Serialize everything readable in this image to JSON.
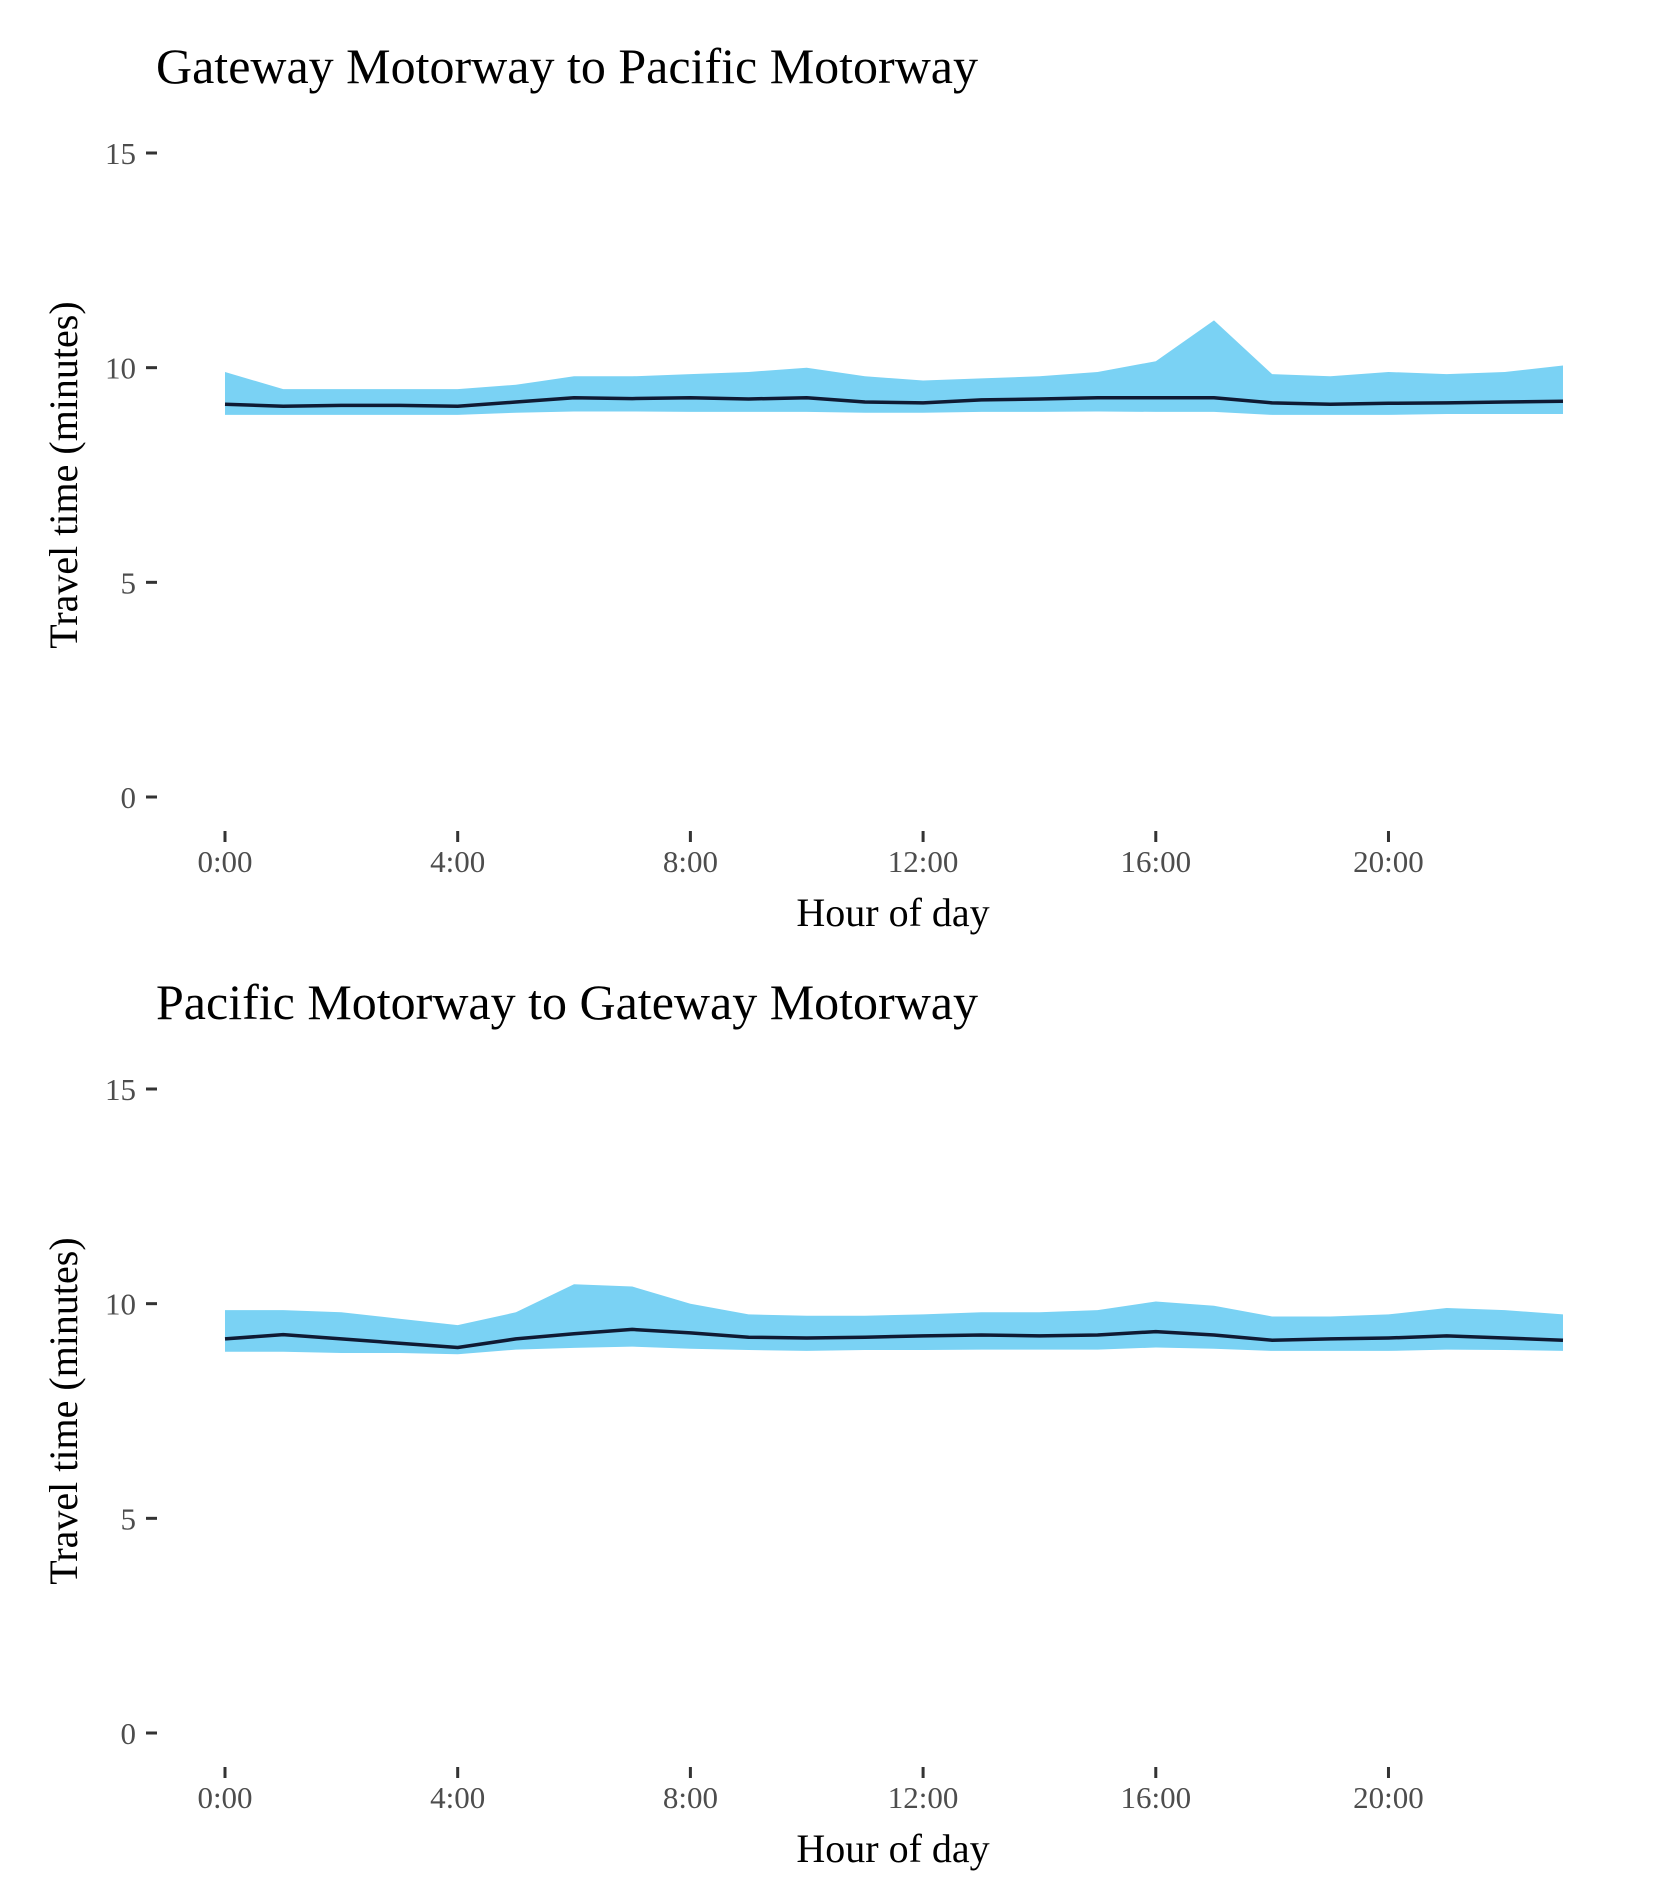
{
  "chart_data": [
    {
      "type": "area",
      "title": "Gateway Motorway to Pacific Motorway",
      "xlabel": "Hour of day",
      "ylabel": "Travel time (minutes)",
      "ylim": [
        0,
        15
      ],
      "yticks": [
        0,
        5,
        10,
        15
      ],
      "xticks": [
        {
          "value": 0,
          "label": "0:00"
        },
        {
          "value": 4,
          "label": "4:00"
        },
        {
          "value": 8,
          "label": "8:00"
        },
        {
          "value": 12,
          "label": "12:00"
        },
        {
          "value": 16,
          "label": "16:00"
        },
        {
          "value": 20,
          "label": "20:00"
        }
      ],
      "xlim": [
        0,
        23
      ],
      "grid": false,
      "legend": "none",
      "band_color": "#7ad2f4",
      "line_color": "#0f1a33",
      "x": [
        0,
        1,
        2,
        3,
        4,
        5,
        6,
        7,
        8,
        9,
        10,
        11,
        12,
        13,
        14,
        15,
        16,
        17,
        18,
        19,
        20,
        21,
        22,
        23
      ],
      "series": [
        {
          "role": "band-upper",
          "values": [
            9.9,
            9.5,
            9.5,
            9.5,
            9.5,
            9.6,
            9.8,
            9.8,
            9.85,
            9.9,
            10.0,
            9.8,
            9.7,
            9.75,
            9.8,
            9.9,
            10.15,
            11.1,
            9.85,
            9.8,
            9.9,
            9.85,
            9.9,
            10.05
          ]
        },
        {
          "role": "line",
          "values": [
            9.15,
            9.1,
            9.12,
            9.12,
            9.1,
            9.2,
            9.3,
            9.28,
            9.3,
            9.27,
            9.3,
            9.2,
            9.18,
            9.25,
            9.27,
            9.3,
            9.3,
            9.3,
            9.18,
            9.15,
            9.17,
            9.18,
            9.2,
            9.22
          ]
        },
        {
          "role": "band-lower",
          "values": [
            8.9,
            8.9,
            8.9,
            8.9,
            8.9,
            8.95,
            8.98,
            8.98,
            8.97,
            8.97,
            8.97,
            8.95,
            8.95,
            8.97,
            8.97,
            8.98,
            8.97,
            8.97,
            8.9,
            8.9,
            8.9,
            8.92,
            8.92,
            8.92
          ]
        }
      ]
    },
    {
      "type": "area",
      "title": "Pacific Motorway to Gateway Motorway",
      "xlabel": "Hour of day",
      "ylabel": "Travel time (minutes)",
      "ylim": [
        0,
        15
      ],
      "yticks": [
        0,
        5,
        10,
        15
      ],
      "xticks": [
        {
          "value": 0,
          "label": "0:00"
        },
        {
          "value": 4,
          "label": "4:00"
        },
        {
          "value": 8,
          "label": "8:00"
        },
        {
          "value": 12,
          "label": "12:00"
        },
        {
          "value": 16,
          "label": "16:00"
        },
        {
          "value": 20,
          "label": "20:00"
        }
      ],
      "xlim": [
        0,
        23
      ],
      "grid": false,
      "legend": "none",
      "band_color": "#7ad2f4",
      "line_color": "#0f1a33",
      "x": [
        0,
        1,
        2,
        3,
        4,
        5,
        6,
        7,
        8,
        9,
        10,
        11,
        12,
        13,
        14,
        15,
        16,
        17,
        18,
        19,
        20,
        21,
        22,
        23
      ],
      "series": [
        {
          "role": "band-upper",
          "values": [
            9.85,
            9.85,
            9.8,
            9.65,
            9.5,
            9.8,
            10.45,
            10.4,
            10.0,
            9.75,
            9.72,
            9.72,
            9.75,
            9.8,
            9.8,
            9.85,
            10.05,
            9.95,
            9.7,
            9.7,
            9.75,
            9.9,
            9.85,
            9.75
          ]
        },
        {
          "role": "line",
          "values": [
            9.18,
            9.28,
            9.18,
            9.08,
            8.98,
            9.18,
            9.3,
            9.4,
            9.32,
            9.22,
            9.2,
            9.22,
            9.25,
            9.27,
            9.25,
            9.27,
            9.35,
            9.27,
            9.15,
            9.18,
            9.2,
            9.25,
            9.2,
            9.15
          ]
        },
        {
          "role": "band-lower",
          "values": [
            8.88,
            8.88,
            8.85,
            8.85,
            8.82,
            8.93,
            8.97,
            9.0,
            8.95,
            8.92,
            8.9,
            8.92,
            8.92,
            8.93,
            8.93,
            8.93,
            8.98,
            8.95,
            8.9,
            8.9,
            8.9,
            8.93,
            8.92,
            8.9
          ]
        }
      ]
    }
  ]
}
